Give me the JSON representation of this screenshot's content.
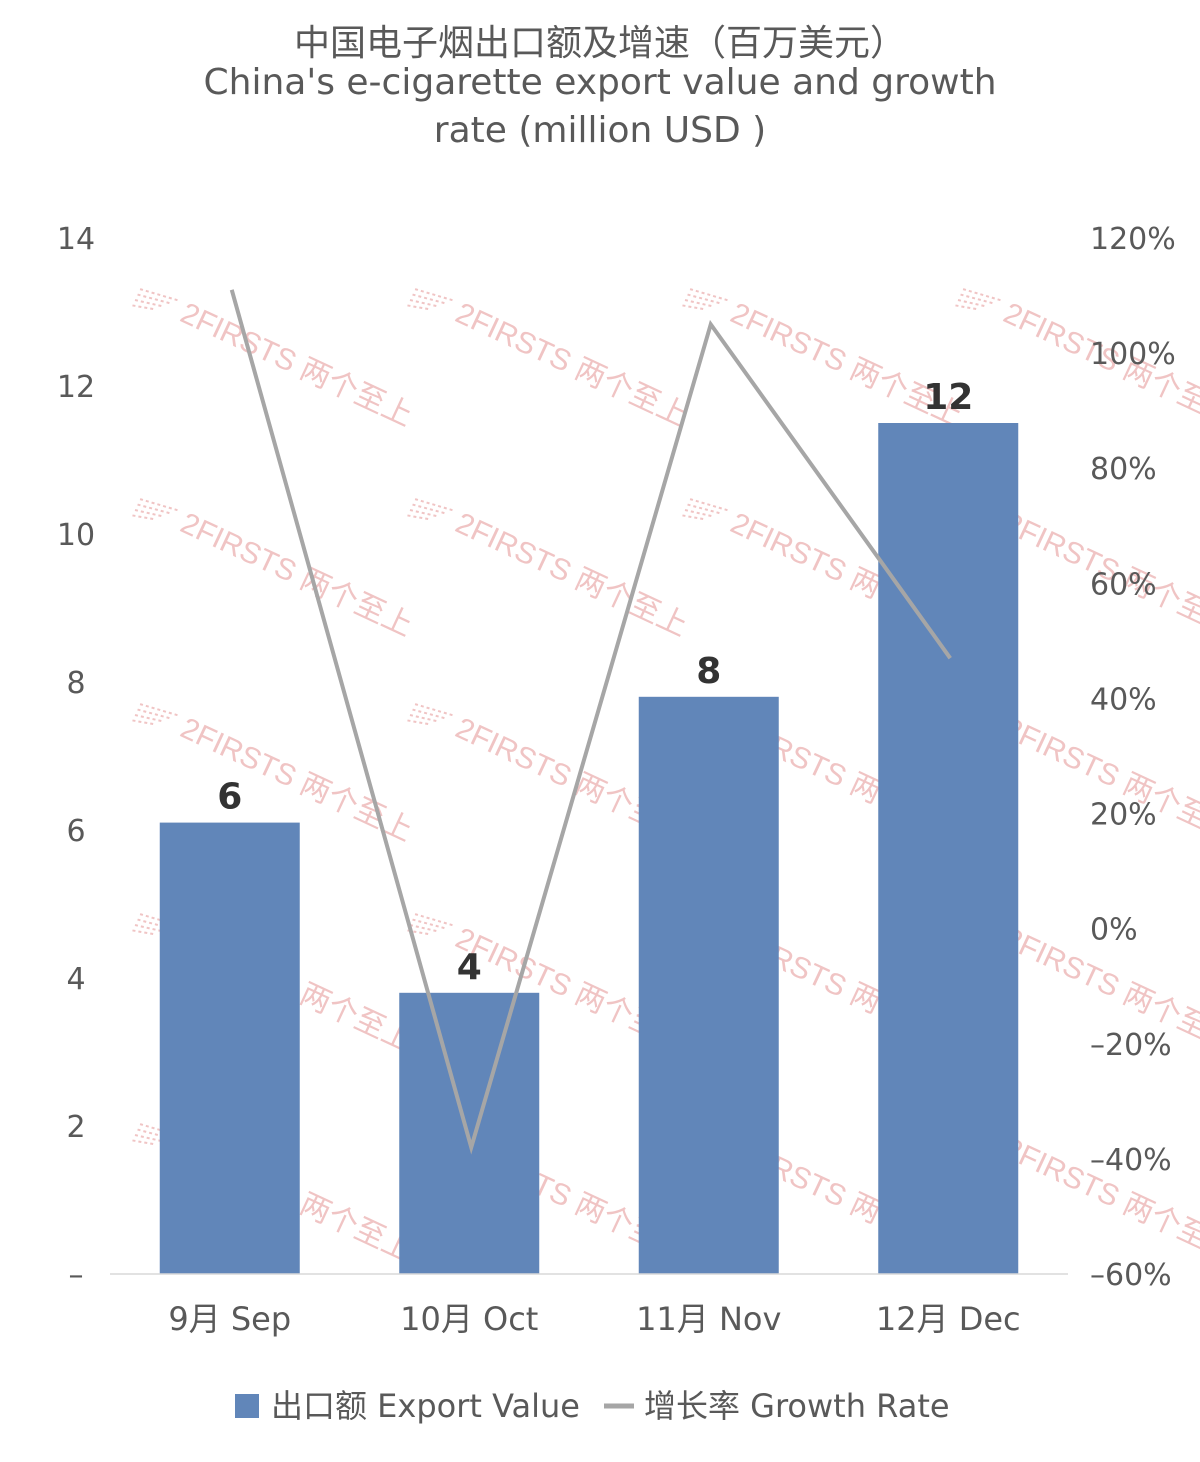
{
  "chart_data": {
    "type": "bar",
    "title_lines": [
      "中国电子烟出口额及增速（百万美元）",
      "China's e-cigarette export value and growth",
      "rate (million USD )"
    ],
    "categories": [
      "9月 Sep",
      "10月 Oct",
      "11月 Nov",
      "12月 Dec"
    ],
    "series": [
      {
        "name": "出口额 Export Value",
        "kind": "bar",
        "axis": "left",
        "color": "#6186b9",
        "values": [
          6.1,
          3.8,
          7.8,
          11.5
        ],
        "data_labels": [
          "6",
          "4",
          "8",
          "12"
        ]
      },
      {
        "name": "增长率 Growth Rate",
        "kind": "line",
        "axis": "right",
        "color": "#a6a6a6",
        "values": [
          111,
          -38,
          105,
          47
        ]
      }
    ],
    "left_axis": {
      "min": 0,
      "max": 14,
      "ticks": [
        0,
        2,
        4,
        6,
        8,
        10,
        12,
        14
      ],
      "tick_labels": [
        "–",
        "2",
        "4",
        "6",
        "8",
        "10",
        "12",
        "14"
      ]
    },
    "right_axis": {
      "min": -60,
      "max": 120,
      "ticks": [
        -60,
        -40,
        -20,
        0,
        20,
        40,
        60,
        80,
        100,
        120
      ],
      "tick_labels": [
        "–60%",
        "–40%",
        "–20%",
        "0%",
        "20%",
        "40%",
        "60%",
        "80%",
        "100%",
        "120%"
      ]
    },
    "grid": false,
    "legend_position": "bottom",
    "watermark": {
      "text": "2FIRSTS 两个至上",
      "color": "#f0c4c4"
    }
  }
}
